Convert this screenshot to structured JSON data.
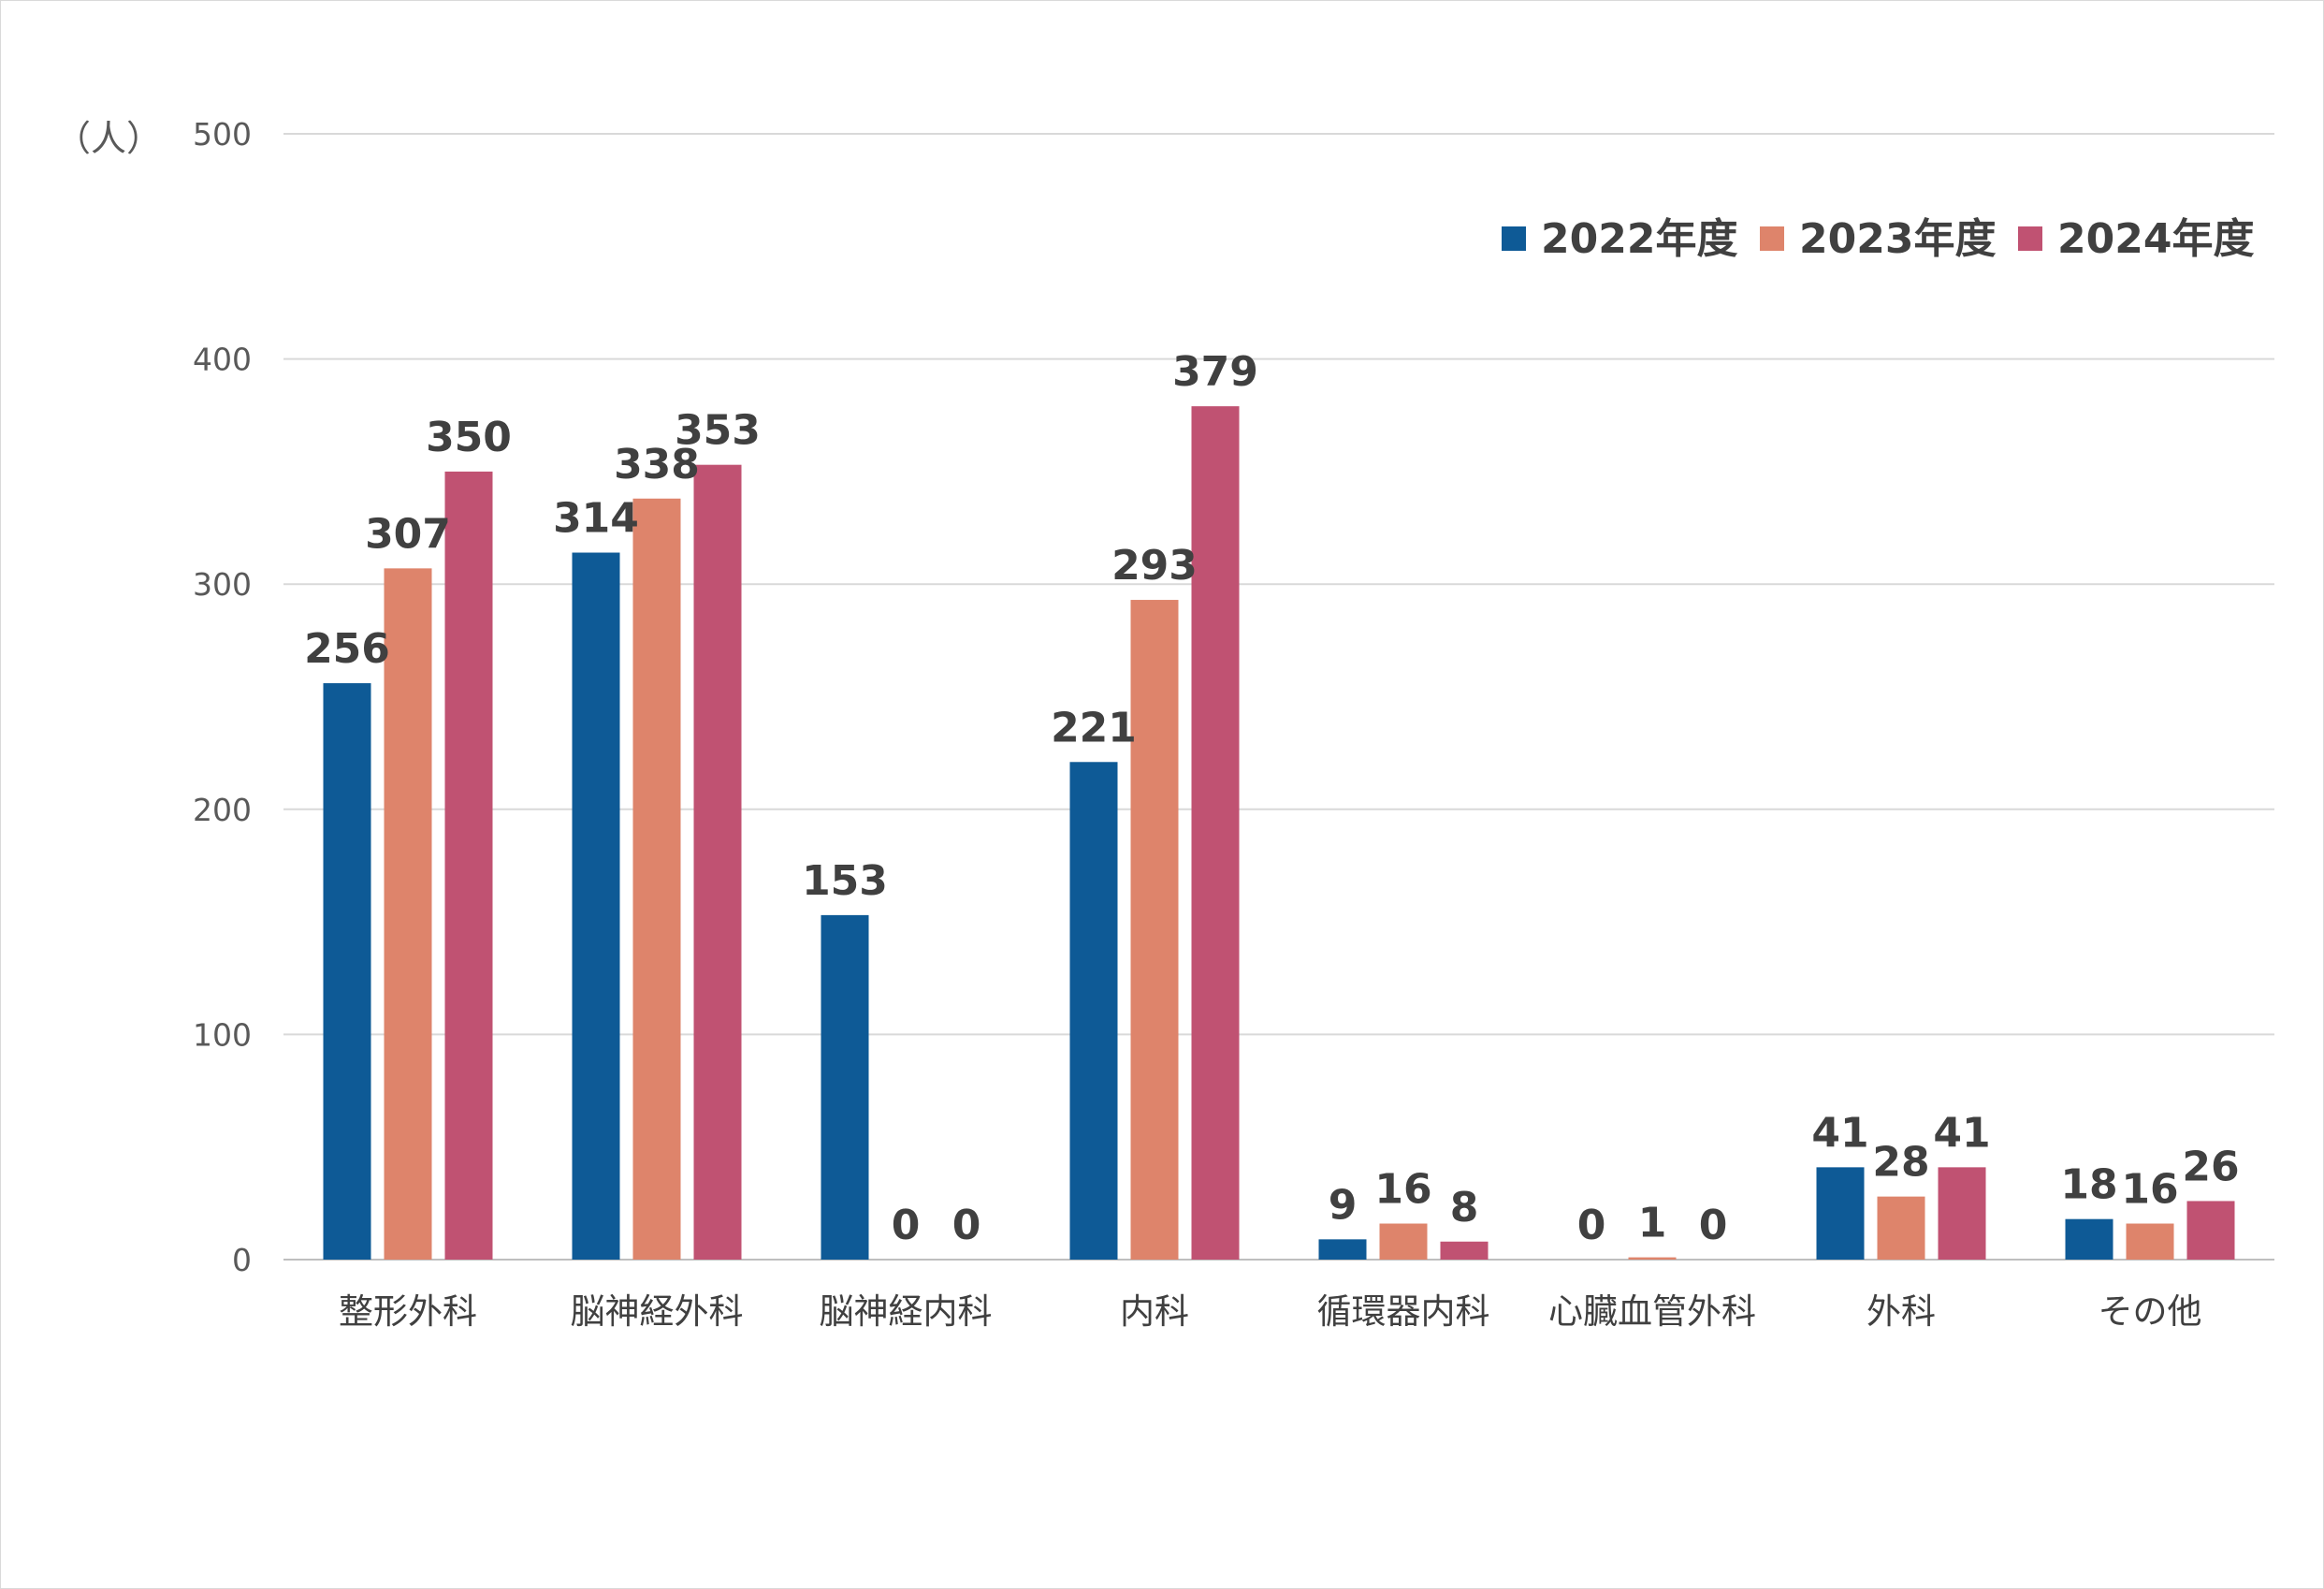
{
  "chart_data": {
    "type": "bar",
    "title": "",
    "xlabel": "",
    "ylabel": "（人）",
    "ylim": [
      0,
      500
    ],
    "yticks": [
      "0",
      "100",
      "200",
      "300",
      "400",
      "500"
    ],
    "categories": [
      "整形外科",
      "脳神経外科",
      "脳神経内科",
      "内科",
      "循環器内科",
      "心臓血管外科",
      "外科",
      "その他"
    ],
    "series": [
      {
        "name": "2022年度",
        "color": "#0e5a96",
        "values": [
          256,
          314,
          153,
          221,
          9,
          0,
          41,
          18
        ]
      },
      {
        "name": "2023年度",
        "color": "#de846b",
        "values": [
          307,
          338,
          0,
          293,
          16,
          1,
          28,
          16
        ]
      },
      {
        "name": "2024年度",
        "color": "#c05272",
        "values": [
          350,
          353,
          0,
          379,
          8,
          0,
          41,
          26
        ]
      }
    ],
    "grid": true,
    "legend": "top-right",
    "gridline_color": "#d9d9d9",
    "axis_color": "#bfbfbf"
  }
}
